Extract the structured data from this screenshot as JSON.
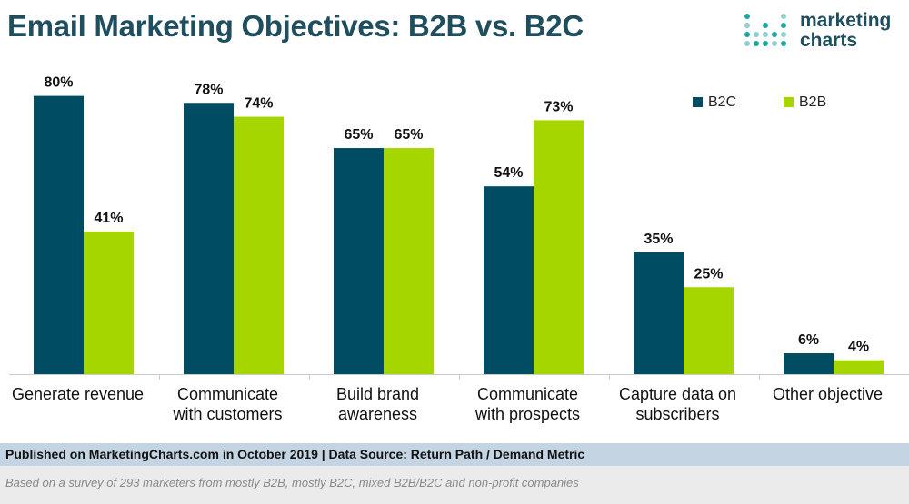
{
  "title": "Email Marketing Objectives: B2B vs. B2C",
  "logo": {
    "line1": "marketing",
    "line2": "charts"
  },
  "colors": {
    "B2C": "#004c62",
    "B2B": "#a6d600",
    "title": "#1f4e5f",
    "footer_band": "#c4d4e3"
  },
  "legend": [
    {
      "label": "B2C",
      "color": "#004c62"
    },
    {
      "label": "B2B",
      "color": "#a6d600"
    }
  ],
  "chart_data": {
    "type": "bar",
    "categories": [
      [
        "Generate revenue"
      ],
      [
        "Communicate",
        "with customers"
      ],
      [
        "Build brand",
        "awareness"
      ],
      [
        "Communicate",
        "with prospects"
      ],
      [
        "Capture data on",
        "subscribers"
      ],
      [
        "Other objective"
      ]
    ],
    "series": [
      {
        "name": "B2C",
        "values": [
          80,
          78,
          65,
          54,
          35,
          6
        ],
        "labels": [
          "80%",
          "78%",
          "65%",
          "54%",
          "35%",
          "6%"
        ]
      },
      {
        "name": "B2B",
        "values": [
          41,
          74,
          65,
          73,
          25,
          4
        ],
        "labels": [
          "41%",
          "74%",
          "65%",
          "73%",
          "25%",
          "4%"
        ]
      }
    ],
    "ylim": [
      0,
      80
    ],
    "legend_position": "top-right",
    "grid": false
  },
  "footer": {
    "published": "Published on MarketingCharts.com in October 2019 | Data Source: Return Path / Demand Metric",
    "note": "Based on a survey of 293 marketers from mostly B2B, mostly B2C, mixed B2B/B2C and non-profit companies"
  }
}
